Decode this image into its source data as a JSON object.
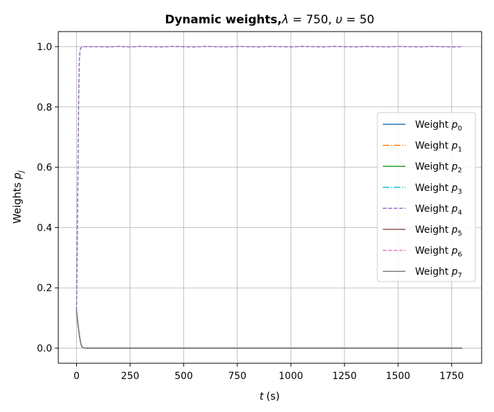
{
  "chart_data": {
    "type": "line",
    "title": {
      "bold": "Dynamic weights,",
      "lambda_symbol": "λ",
      "lambda_eq": " = 750, ",
      "upsilon_symbol": "υ",
      "upsilon_eq": " = 50"
    },
    "xlabel": {
      "var": "t",
      "unit": "(s)"
    },
    "ylabel": {
      "prefix": "Weights ",
      "var": "p",
      "sub": "j"
    },
    "xlim": [
      -85,
      1890
    ],
    "ylim": [
      -0.05,
      1.05
    ],
    "xticks": [
      0,
      250,
      500,
      750,
      1000,
      1250,
      1500,
      1750
    ],
    "xtick_labels": [
      "0",
      "250",
      "500",
      "750",
      "1000",
      "1250",
      "1500",
      "1750"
    ],
    "yticks": [
      0.0,
      0.2,
      0.4,
      0.6,
      0.8,
      1.0
    ],
    "ytick_labels": [
      "0.0",
      "0.2",
      "0.4",
      "0.6",
      "0.8",
      "1.0"
    ],
    "grid": true,
    "legend_position": "center-right",
    "series": [
      {
        "name": "Weight ",
        "sub": "0",
        "color": "#1f77b4",
        "style": "solid",
        "x": [
          0,
          5,
          10,
          15,
          20,
          25,
          30,
          40,
          60,
          100,
          1800
        ],
        "y": [
          0.125,
          0.09,
          0.06,
          0.035,
          0.015,
          0.005,
          0.0015,
          0.0003,
          0.0,
          0.0,
          0.0
        ]
      },
      {
        "name": "Weight ",
        "sub": "1",
        "color": "#ff7f0e",
        "style": "dashdot",
        "x": [
          0,
          5,
          10,
          15,
          20,
          25,
          30,
          40,
          60,
          100,
          1800
        ],
        "y": [
          0.125,
          0.09,
          0.06,
          0.035,
          0.015,
          0.005,
          0.0015,
          0.0003,
          0.0,
          0.0,
          0.0
        ]
      },
      {
        "name": "Weight ",
        "sub": "2",
        "color": "#2ca02c",
        "style": "solid",
        "x": [
          0,
          5,
          10,
          15,
          20,
          25,
          30,
          40,
          60,
          100,
          1800
        ],
        "y": [
          0.125,
          0.09,
          0.06,
          0.035,
          0.015,
          0.005,
          0.0015,
          0.0003,
          0.0,
          0.0,
          0.0
        ]
      },
      {
        "name": "Weight ",
        "sub": "3",
        "color": "#17becf",
        "style": "dashdot",
        "x": [
          0,
          5,
          10,
          15,
          20,
          25,
          30,
          40,
          60,
          100,
          1800
        ],
        "y": [
          0.125,
          0.09,
          0.06,
          0.035,
          0.015,
          0.005,
          0.0015,
          0.0003,
          0.0,
          0.0,
          0.0
        ]
      },
      {
        "name": "Weight ",
        "sub": "4",
        "color": "#9467bd",
        "style": "dashed",
        "x": [
          0,
          2,
          5,
          8,
          10,
          13,
          16,
          20,
          25,
          30,
          40,
          60,
          100,
          150,
          200,
          250,
          300,
          350,
          400,
          450,
          500,
          550,
          600,
          650,
          700,
          750,
          800,
          850,
          900,
          950,
          1000,
          1050,
          1100,
          1150,
          1200,
          1250,
          1300,
          1350,
          1400,
          1450,
          1500,
          1550,
          1600,
          1650,
          1700,
          1750,
          1800
        ],
        "y": [
          0.125,
          0.25,
          0.45,
          0.68,
          0.84,
          0.95,
          0.985,
          0.995,
          0.999,
          1.0,
          1.0,
          1.0,
          1.0,
          0.999,
          1.001,
          0.999,
          1.001,
          1.0,
          0.999,
          1.001,
          1.0,
          0.999,
          1.001,
          1.0,
          0.999,
          1.001,
          1.0,
          0.999,
          1.001,
          1.0,
          0.999,
          1.001,
          1.0,
          0.999,
          1.001,
          1.0,
          0.999,
          1.001,
          1.0,
          0.999,
          1.001,
          1.0,
          0.999,
          1.001,
          1.0,
          0.999,
          1.0
        ]
      },
      {
        "name": "Weight ",
        "sub": "5",
        "color": "#8c564b",
        "style": "solid",
        "x": [
          0,
          5,
          10,
          15,
          20,
          25,
          30,
          40,
          60,
          100,
          1800
        ],
        "y": [
          0.125,
          0.09,
          0.06,
          0.035,
          0.015,
          0.005,
          0.0015,
          0.0003,
          0.0,
          0.0,
          0.0
        ]
      },
      {
        "name": "Weight ",
        "sub": "6",
        "color": "#e377c2",
        "style": "dashed",
        "x": [
          0,
          5,
          10,
          15,
          20,
          25,
          30,
          40,
          60,
          100,
          1800
        ],
        "y": [
          0.125,
          0.09,
          0.06,
          0.035,
          0.015,
          0.005,
          0.0015,
          0.0003,
          0.0,
          0.0,
          0.0
        ]
      },
      {
        "name": "Weight ",
        "sub": "7",
        "color": "#7f7f7f",
        "style": "solid",
        "x": [
          0,
          5,
          10,
          15,
          20,
          25,
          30,
          40,
          60,
          100,
          1800
        ],
        "y": [
          0.125,
          0.09,
          0.06,
          0.035,
          0.015,
          0.005,
          0.0015,
          0.0003,
          0.0,
          0.0,
          0.0
        ]
      }
    ]
  }
}
